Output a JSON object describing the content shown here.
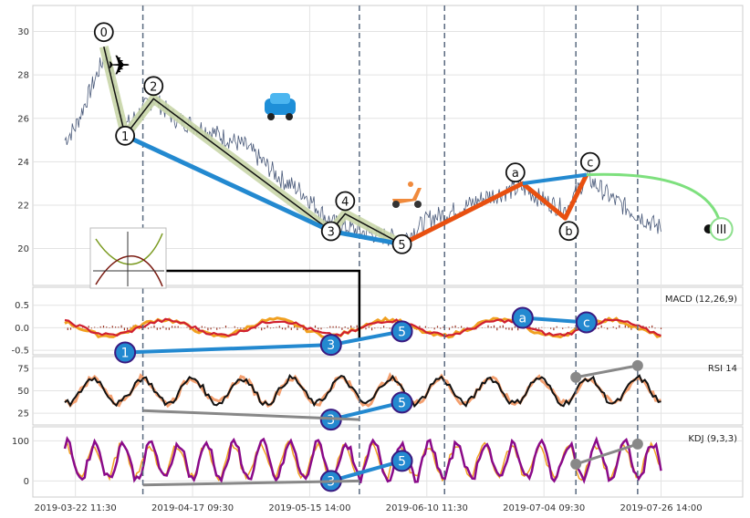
{
  "chart_data": {
    "type": "line",
    "x_ticks": [
      "2019-03-22 11:30",
      "2019-04-17 09:30",
      "2019-05-15 14:00",
      "2019-06-10 11:30",
      "2019-07-04 09:30",
      "2019-07-26 14:00"
    ],
    "price": {
      "ylim": [
        18.3,
        31.2
      ],
      "y_ticks": [
        20,
        22,
        24,
        26,
        28,
        30
      ],
      "waves": [
        {
          "label": "0",
          "x": 0.1,
          "y": 29.3
        },
        {
          "label": "1",
          "x": 0.13,
          "y": 25.2
        },
        {
          "label": "2",
          "x": 0.17,
          "y": 26.9
        },
        {
          "label": "3",
          "x": 0.42,
          "y": 20.8
        },
        {
          "label": "4",
          "x": 0.44,
          "y": 21.6
        },
        {
          "label": "5",
          "x": 0.52,
          "y": 20.2
        }
      ],
      "corrective": [
        {
          "label": "a",
          "x": 0.69,
          "y": 23.0
        },
        {
          "label": "b",
          "x": 0.75,
          "y": 21.4
        },
        {
          "label": "c",
          "x": 0.78,
          "y": 23.4
        }
      ],
      "target_label": "III"
    },
    "macd": {
      "title": "MACD (12,26,9)",
      "ylim": [
        -0.6,
        0.9
      ],
      "y_ticks": [
        -0.5,
        0.0,
        0.5
      ],
      "y_tick_labels": [
        "-0.5",
        "0.0",
        "0.5"
      ],
      "markers": [
        {
          "label": "1",
          "x": 0.13,
          "y": -0.55
        },
        {
          "label": "3",
          "x": 0.42,
          "y": -0.38
        },
        {
          "label": "5",
          "x": 0.52,
          "y": -0.08
        },
        {
          "label": "a",
          "x": 0.69,
          "y": 0.22
        },
        {
          "label": "c",
          "x": 0.78,
          "y": 0.12
        }
      ]
    },
    "rsi": {
      "title": "RSI 14",
      "ylim": [
        12,
        88
      ],
      "y_ticks": [
        25,
        50,
        75
      ],
      "markers": [
        {
          "label": "3",
          "x": 0.42,
          "y": 18
        },
        {
          "label": "5",
          "x": 0.52,
          "y": 37
        }
      ]
    },
    "kdj": {
      "title": "KDJ (9,3,3)",
      "ylim": [
        -40,
        135
      ],
      "y_ticks": [
        0,
        100
      ],
      "markers": [
        {
          "label": "3",
          "x": 0.42,
          "y": 0
        },
        {
          "label": "5",
          "x": 0.52,
          "y": 50
        }
      ]
    }
  }
}
